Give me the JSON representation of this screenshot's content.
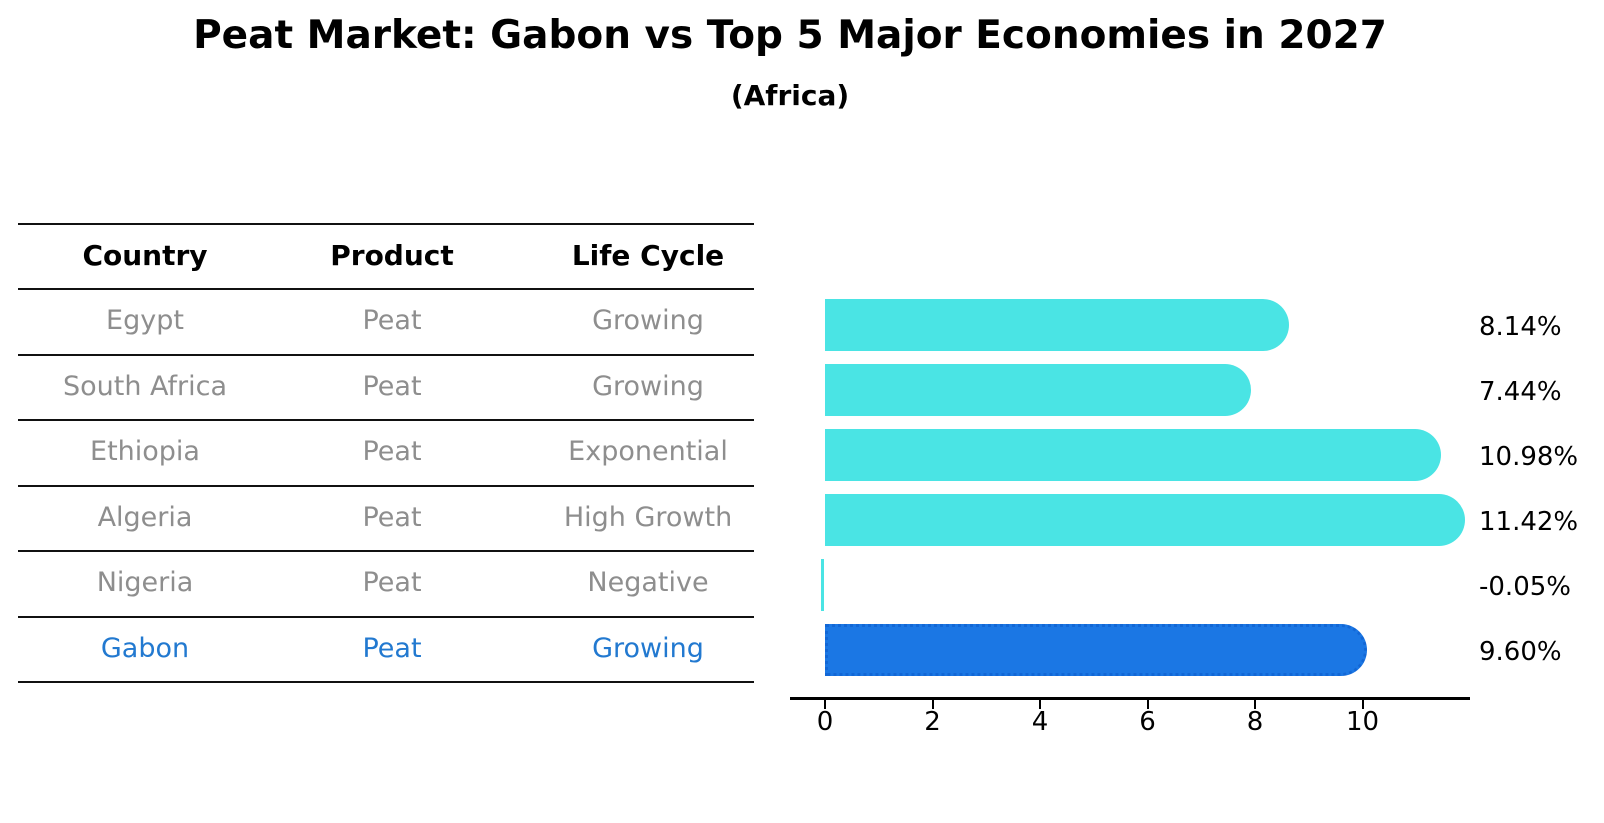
{
  "header": {
    "title": "Peat Market: Gabon vs Top 5 Major Economies in 2027",
    "subtitle": "(Africa)"
  },
  "table": {
    "columns": [
      "Country",
      "Product",
      "Life Cycle"
    ],
    "rows": [
      {
        "country": "Egypt",
        "product": "Peat",
        "life_cycle": "Growing",
        "highlight": false
      },
      {
        "country": "South Africa",
        "product": "Peat",
        "life_cycle": "Growing",
        "highlight": false
      },
      {
        "country": "Ethiopia",
        "product": "Peat",
        "life_cycle": "Exponential",
        "highlight": false
      },
      {
        "country": "Algeria",
        "product": "Peat",
        "life_cycle": "High Growth",
        "highlight": false
      },
      {
        "country": "Nigeria",
        "product": "Peat",
        "life_cycle": "Negative",
        "highlight": false
      },
      {
        "country": "Gabon",
        "product": "Peat",
        "life_cycle": "Growing",
        "highlight": true
      }
    ]
  },
  "chart_data": {
    "type": "bar",
    "orientation": "horizontal",
    "title": "Peat Market: Gabon vs Top 5 Major Economies in 2027",
    "subtitle": "(Africa)",
    "categories": [
      "Egypt",
      "South Africa",
      "Ethiopia",
      "Algeria",
      "Nigeria",
      "Gabon"
    ],
    "values": [
      8.14,
      7.44,
      10.98,
      11.42,
      -0.05,
      9.6
    ],
    "labels": [
      "8.14%",
      "7.44%",
      "10.98%",
      "11.42%",
      "-0.05%",
      "9.60%"
    ],
    "highlight_index": 5,
    "x_ticks": [
      0,
      2,
      4,
      6,
      8,
      10
    ],
    "xlim": [
      -0.65,
      12.05
    ],
    "grid": false,
    "legend": false,
    "colors": {
      "bar_default": "#4AE4E4",
      "bar_highlight": "#1B77E4",
      "bar_highlight_edge": "#1267D6",
      "highlight_text": "#2279D0",
      "row_text": "#8E8E8E",
      "line": "#111111",
      "axis": "#000000",
      "label_text": "#000000"
    }
  }
}
